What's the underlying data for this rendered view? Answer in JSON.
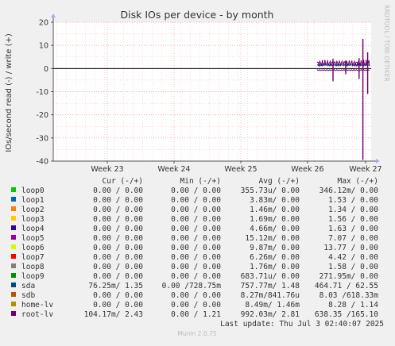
{
  "chart_data": {
    "type": "line",
    "title": "Disk IOs per device - by month",
    "ylabel": "IOs/second read (-) / write (+)",
    "side_label": "RRDTOOL / TOBI OETIKER",
    "ylim": [
      -40,
      20
    ],
    "yticks": [
      "20",
      "10",
      "0",
      "-10",
      "-20",
      "-30",
      "-40"
    ],
    "yvalues": [
      20,
      10,
      0,
      -10,
      -20,
      -30,
      -40
    ],
    "xticks": [
      "Week 23",
      "Week 24",
      "Week 25",
      "Week 26",
      "Week 27"
    ],
    "grid": true,
    "spikes": [
      {
        "series": "root-lv",
        "x": 0.974,
        "write": 12.8,
        "read": -39.5
      },
      {
        "series": "root-lv",
        "x": 0.962,
        "write": 4.5,
        "read": -4.5
      },
      {
        "series": "root-lv",
        "x": 0.989,
        "write": 7.0,
        "read": -11.0
      },
      {
        "series": "root-lv",
        "x": 0.88,
        "write": 4.2,
        "read": -5.5
      },
      {
        "series": "root-lv",
        "x": 0.92,
        "write": 3.5,
        "read": -2.5
      }
    ]
  },
  "header": {
    "cur": "Cur (-/+)",
    "min": "Min (-/+)",
    "avg": "Avg (-/+)",
    "max": "Max (-/+)"
  },
  "legend": [
    {
      "name": "loop0",
      "color": "#00cc00",
      "cur": "0.00 /  0.00",
      "min": "0.00 /  0.00",
      "avg": "355.73u/  0.00",
      "max": "346.12m/  0.00"
    },
    {
      "name": "loop1",
      "color": "#0066b3",
      "cur": "0.00 /  0.00",
      "min": "0.00 /  0.00",
      "avg": "3.83m/  0.00",
      "max": "1.53 /  0.00"
    },
    {
      "name": "loop2",
      "color": "#ff8000",
      "cur": "0.00 /  0.00",
      "min": "0.00 /  0.00",
      "avg": "1.46m/  0.00",
      "max": "1.34 /  0.00"
    },
    {
      "name": "loop3",
      "color": "#ffcc00",
      "cur": "0.00 /  0.00",
      "min": "0.00 /  0.00",
      "avg": "1.69m/  0.00",
      "max": "1.56 /  0.00"
    },
    {
      "name": "loop4",
      "color": "#330099",
      "cur": "0.00 /  0.00",
      "min": "0.00 /  0.00",
      "avg": "4.66m/  0.00",
      "max": "1.63 /  0.00"
    },
    {
      "name": "loop5",
      "color": "#990099",
      "cur": "0.00 /  0.00",
      "min": "0.00 /  0.00",
      "avg": "15.12m/  0.00",
      "max": "7.07 /  0.00"
    },
    {
      "name": "loop6",
      "color": "#ccff00",
      "cur": "0.00 /  0.00",
      "min": "0.00 /  0.00",
      "avg": "9.87m/  0.00",
      "max": "13.77 /  0.00"
    },
    {
      "name": "loop7",
      "color": "#ff0000",
      "cur": "0.00 /  0.00",
      "min": "0.00 /  0.00",
      "avg": "6.26m/  0.00",
      "max": "4.42 /  0.00"
    },
    {
      "name": "loop8",
      "color": "#808080",
      "cur": "0.00 /  0.00",
      "min": "0.00 /  0.00",
      "avg": "1.76m/  0.00",
      "max": "1.58 /  0.00"
    },
    {
      "name": "loop9",
      "color": "#008f00",
      "cur": "0.00 /  0.00",
      "min": "0.00 /  0.00",
      "avg": "683.71u/  0.00",
      "max": "271.95m/  0.00"
    },
    {
      "name": "sda",
      "color": "#00487d",
      "cur": "76.25m/  1.35",
      "min": "0.00 /728.75m",
      "avg": "757.77m/  1.48",
      "max": "464.71 / 62.55"
    },
    {
      "name": "sdb",
      "color": "#b35a00",
      "cur": "0.00 /  0.00",
      "min": "0.00 /  0.00",
      "avg": "8.27m/841.76u",
      "max": "8.03 /618.33m"
    },
    {
      "name": "home-lv",
      "color": "#b38f00",
      "cur": "0.00 /  0.00",
      "min": "0.00 /  0.00",
      "avg": "8.49m/  1.46m",
      "max": "8.28 /  1.14"
    },
    {
      "name": "root-lv",
      "color": "#6b006b",
      "cur": "104.17m/  2.43",
      "min": "0.00 /  1.21",
      "avg": "992.03m/  2.81",
      "max": "638.35 /165.10"
    }
  ],
  "footer": {
    "last_update": "Last update: Thu Jul  3 02:40:07 2025",
    "munin": "Munin 2.0.75"
  }
}
